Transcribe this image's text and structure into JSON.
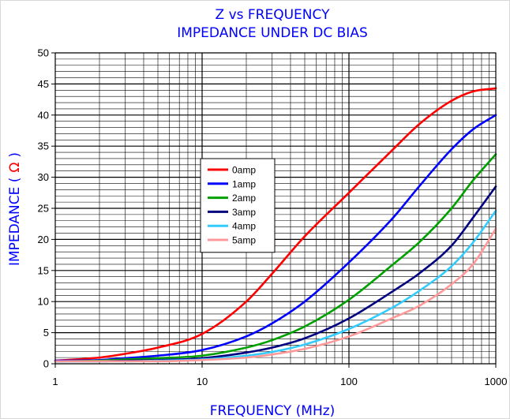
{
  "chart_data": {
    "type": "line",
    "title": "Z vs FREQUENCY",
    "subtitle": "IMPEDANCE UNDER DC BIAS",
    "xlabel": "FREQUENCY (MHz)",
    "ylabel_main": "IMPEDANCE (",
    "ylabel_unit": "Ω",
    "ylabel_close": ")",
    "x_scale": "log",
    "xlim": [
      1,
      1000
    ],
    "ylim": [
      0,
      50
    ],
    "x_ticks": [
      "1",
      "10",
      "100",
      "1000"
    ],
    "y_ticks": [
      "0",
      "5",
      "10",
      "15",
      "20",
      "25",
      "30",
      "35",
      "40",
      "45",
      "50"
    ],
    "grid": true,
    "legend_position": "center-left",
    "colors": {
      "title": "#0000ff",
      "axis_title": "#0000ff",
      "unit_symbol": "#ff0000",
      "grid": "#000000"
    },
    "x": [
      1,
      2,
      3,
      5,
      10,
      20,
      30,
      50,
      100,
      200,
      300,
      500,
      700,
      1000
    ],
    "series": [
      {
        "name": "0amp",
        "color": "#ff0000",
        "values": [
          0.5,
          1.0,
          1.6,
          2.6,
          4.8,
          10.0,
          14.5,
          20.5,
          27.5,
          34.5,
          38.5,
          42.3,
          43.8,
          44.3
        ]
      },
      {
        "name": "1amp",
        "color": "#0000ff",
        "values": [
          0.5,
          0.6,
          0.9,
          1.3,
          2.2,
          4.4,
          6.5,
          10.0,
          16.3,
          23.5,
          28.5,
          34.5,
          37.7,
          40.0
        ]
      },
      {
        "name": "2amp",
        "color": "#00a000",
        "values": [
          0.4,
          0.5,
          0.7,
          0.9,
          1.3,
          2.6,
          3.8,
          6.0,
          10.3,
          16.0,
          19.5,
          25.0,
          29.5,
          33.7
        ]
      },
      {
        "name": "3amp",
        "color": "#000080",
        "values": [
          0.4,
          0.4,
          0.5,
          0.6,
          0.9,
          1.8,
          2.6,
          4.1,
          7.3,
          11.7,
          14.5,
          19.0,
          23.5,
          28.5
        ]
      },
      {
        "name": "4amp",
        "color": "#33ccff",
        "values": [
          0.4,
          0.4,
          0.4,
          0.5,
          0.7,
          1.3,
          1.9,
          3.1,
          5.6,
          9.1,
          11.7,
          15.7,
          19.5,
          24.6
        ]
      },
      {
        "name": "5amp",
        "color": "#ff9999",
        "values": [
          0.4,
          0.4,
          0.4,
          0.4,
          0.6,
          1.0,
          1.5,
          2.4,
          4.4,
          7.4,
          9.3,
          12.8,
          16.0,
          21.7
        ]
      }
    ]
  }
}
